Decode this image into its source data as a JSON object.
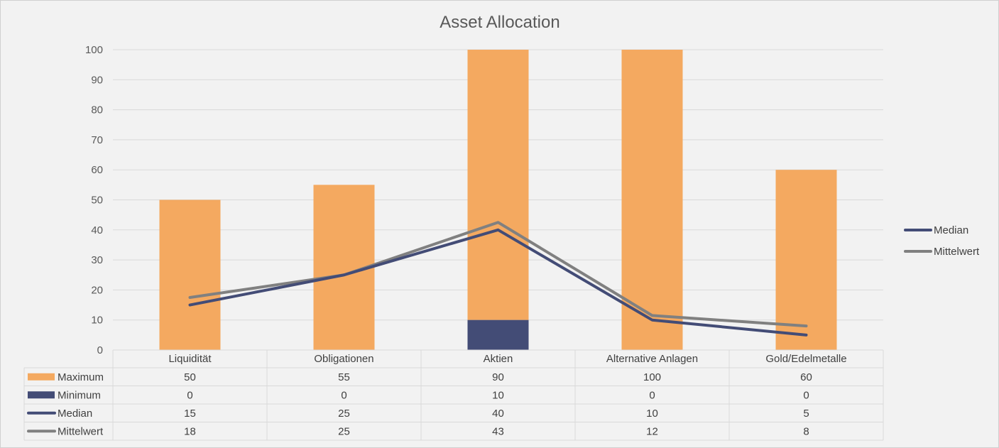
{
  "chart_data": {
    "type": "bar",
    "title": "Asset Allocation",
    "categories": [
      "Liquidität",
      "Obligationen",
      "Aktien",
      "Alternative Anlagen",
      "Gold/Edelmetalle"
    ],
    "ylim": [
      0,
      100
    ],
    "yticks": [
      0,
      10,
      20,
      30,
      40,
      50,
      60,
      70,
      80,
      90,
      100
    ],
    "grid": true,
    "legend_position": "right",
    "series": [
      {
        "name": "Maximum",
        "kind": "bar",
        "color": "#f4a960",
        "values": [
          50,
          55,
          90,
          100,
          60
        ],
        "labels": [
          "50",
          "55",
          "90",
          "100",
          "60"
        ]
      },
      {
        "name": "Minimum",
        "kind": "bar",
        "color": "#434c76",
        "values": [
          0,
          0,
          10,
          0,
          0
        ],
        "labels": [
          "0",
          "0",
          "10",
          "0",
          "0"
        ]
      },
      {
        "name": "Median",
        "kind": "line",
        "color": "#434c76",
        "values": [
          15,
          25,
          40,
          10,
          5
        ],
        "labels": [
          "15",
          "25",
          "40",
          "10",
          "5"
        ]
      },
      {
        "name": "Mittelwert",
        "kind": "line",
        "color": "#808080",
        "values": [
          17.5,
          25,
          42.5,
          11.5,
          8
        ],
        "labels": [
          "18",
          "25",
          "43",
          "12",
          "8"
        ]
      }
    ],
    "legend": [
      "Median",
      "Mittelwert"
    ]
  }
}
